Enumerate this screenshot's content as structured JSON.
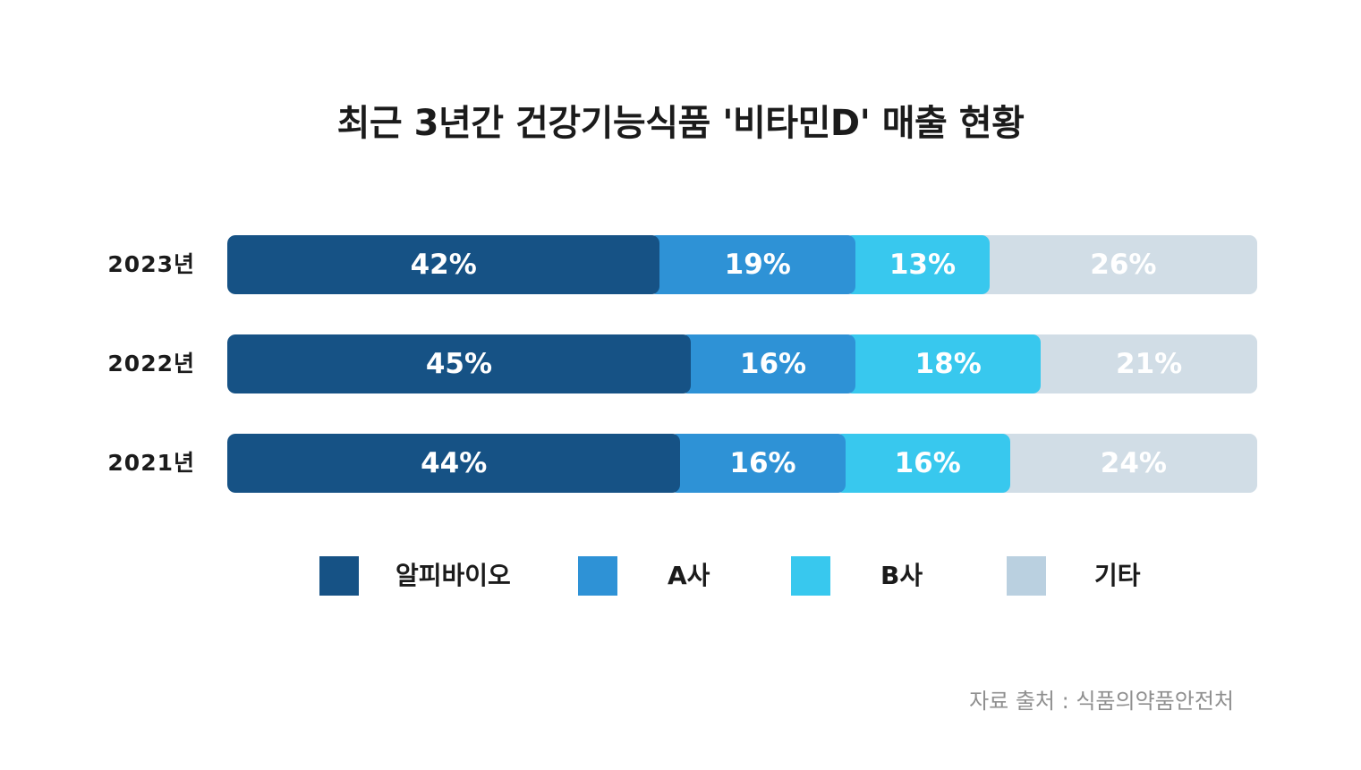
{
  "chart_data": {
    "type": "bar",
    "stacked": true,
    "orientation": "horizontal",
    "normalized": true,
    "title": "최근 3년간 건강기능식품 '비타민D' 매출 현황",
    "categories": [
      "2023년",
      "2022년",
      "2021년"
    ],
    "series": [
      {
        "name": "알피바이오",
        "color": "#165285",
        "values": [
          42,
          45,
          44
        ],
        "labels": [
          "42%",
          "45%",
          "44%"
        ]
      },
      {
        "name": "A사",
        "color": "#2e92d6",
        "values": [
          19,
          16,
          16
        ],
        "labels": [
          "19%",
          "16%",
          "16%"
        ]
      },
      {
        "name": "B사",
        "color": "#38c8ee",
        "values": [
          13,
          18,
          16
        ],
        "labels": [
          "13%",
          "18%",
          "16%"
        ]
      },
      {
        "name": "기타",
        "color": "#d1dde6",
        "values": [
          26,
          21,
          24
        ],
        "labels": [
          "26%",
          "21%",
          "24%"
        ]
      }
    ],
    "legend_position": "bottom",
    "grid": false
  },
  "legend": [
    {
      "label": "알피바이오",
      "color": "#165285"
    },
    {
      "label": "A사",
      "color": "#2e92d6"
    },
    {
      "label": "B사",
      "color": "#38c8ee"
    },
    {
      "label": "기타",
      "color": "#bad0e0"
    }
  ],
  "source": "자료 출처 : 식품의약품안전처"
}
